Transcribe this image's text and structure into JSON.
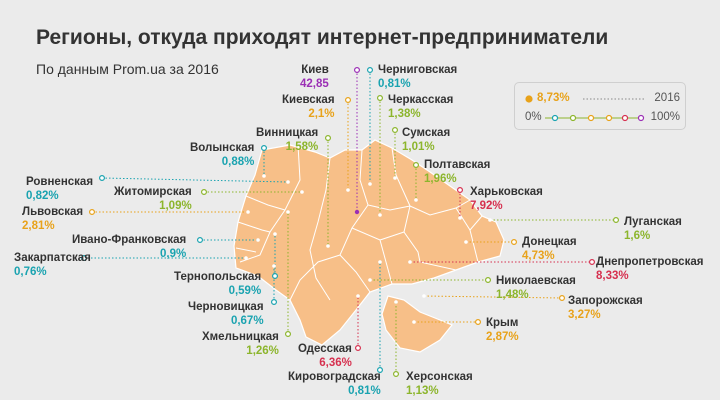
{
  "title": "Регионы, откуда приходят интернет-предприниматели",
  "subtitle": "По данным Prom.ua за 2016",
  "legend": {
    "example": "8,73%",
    "year": "2016",
    "min": "0%",
    "max": "100%",
    "scale_colors": [
      "#1aa3b0",
      "#8cb52c",
      "#e8a21a",
      "#e8a21a",
      "#d6304f",
      "#9b2fb5"
    ]
  },
  "colors": {
    "land": "#f7bf88",
    "border": "#ffffff",
    "teal": "#1aa3b0",
    "green": "#8cb52c",
    "orange": "#e8a21a",
    "red": "#d6304f",
    "purple": "#9b2fb5"
  },
  "regions": {
    "kiev": {
      "name": "Киев",
      "value": "42,85"
    },
    "chernigov": {
      "name": "Черниговская",
      "value": "0,81%"
    },
    "kievskaya": {
      "name": "Киевская",
      "value": "2,1%"
    },
    "cherkassy": {
      "name": "Черкасская",
      "value": "1,38%"
    },
    "vinnitsa": {
      "name": "Винницкая",
      "value": "1,58%"
    },
    "sumy": {
      "name": "Сумская",
      "value": "1,01%"
    },
    "volyn": {
      "name": "Волынская",
      "value": "0,88%"
    },
    "poltava": {
      "name": "Полтавская",
      "value": "1,96%"
    },
    "rovno": {
      "name": "Ровненская",
      "value": "0,82%"
    },
    "zhitomir": {
      "name": "Житомирская",
      "value": "1,09%"
    },
    "kharkov": {
      "name": "Харьковская",
      "value": "7,92%"
    },
    "lvov": {
      "name": "Львовская",
      "value": "2,81%"
    },
    "lugansk": {
      "name": "Луганская",
      "value": "1,6%"
    },
    "ivano": {
      "name": "Ивано-Франковская",
      "value": "0,9%"
    },
    "donetsk": {
      "name": "Донецкая",
      "value": "4,73%"
    },
    "zakarpat": {
      "name": "Закарпатская",
      "value": "0,76%"
    },
    "dnepr": {
      "name": "Днепропетровская",
      "value": "8,33%"
    },
    "ternopol": {
      "name": "Тернопольская",
      "value": "0,59%"
    },
    "nikolaev": {
      "name": "Николаевская",
      "value": "1,48%"
    },
    "zaporozh": {
      "name": "Запорожская",
      "value": "3,27%"
    },
    "chernovtsy": {
      "name": "Черновицкая",
      "value": "0,67%"
    },
    "crimea": {
      "name": "Крым",
      "value": "2,87%"
    },
    "khmeln": {
      "name": "Хмельницкая",
      "value": "1,26%"
    },
    "odessa": {
      "name": "Одесская",
      "value": "6,36%"
    },
    "kirovograd": {
      "name": "Кировоградская",
      "value": "0,81%"
    },
    "kherson": {
      "name": "Херсонская",
      "value": "1,13%"
    }
  }
}
